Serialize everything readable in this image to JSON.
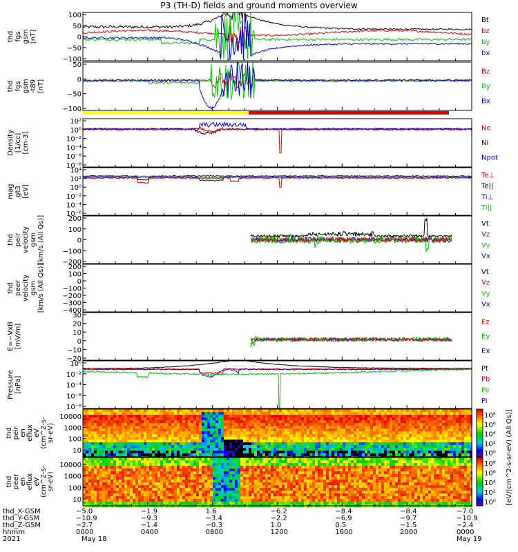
{
  "title": "P3 (TH-D) fields and ground moments overview",
  "colors": {
    "black": "#000000",
    "red": "#e00000",
    "green": "#00c800",
    "blue": "#0000e0",
    "yellow": "#ffff00"
  },
  "chart_data": [
    {
      "type": "line",
      "ylabel": [
        "thd",
        "fgs",
        "gsm",
        "[nT]"
      ],
      "yticks": [
        "100",
        "50",
        "0",
        "−50",
        "−100"
      ],
      "ylim": [
        -100,
        100
      ],
      "series": [
        {
          "name": "Bt",
          "color": "#000000"
        },
        {
          "name": "bz",
          "color": "#e00000"
        },
        {
          "name": "by",
          "color": "#00c800"
        },
        {
          "name": "bx",
          "color": "#0000e0"
        }
      ]
    },
    {
      "type": "line",
      "ylabel": [
        "thd",
        "fgs",
        "gsm",
        "-t89",
        "[nT]"
      ],
      "yticks": [
        "50",
        "0",
        "−50",
        "−100"
      ],
      "ylim": [
        -130,
        80
      ],
      "series": [
        {
          "name": "Bz",
          "color": "#e00000"
        },
        {
          "name": "By",
          "color": "#00c800"
        },
        {
          "name": "Bx",
          "color": "#0000e0"
        }
      ]
    },
    {
      "type": "line",
      "ylabel": [
        "Density",
        "[1/cc]",
        "[cm-3]"
      ],
      "yticks": [
        "10²",
        "10⁰",
        "10⁻²",
        "10⁻⁴",
        "10⁻⁶",
        "10⁻⁸"
      ],
      "ylim": [
        -9,
        3
      ],
      "series": [
        {
          "name": "Ne",
          "color": "#e00000"
        },
        {
          "name": "Ni",
          "color": "#000000"
        },
        {
          "name": "Npot",
          "color": "#0000e0"
        }
      ]
    },
    {
      "type": "line",
      "ylabel": [
        "mag",
        "gt3",
        "[eV]"
      ],
      "yticks": [
        "10⁴",
        "10²",
        "10⁰",
        "10⁻²",
        "10⁻⁴",
        "10⁻⁶"
      ],
      "ylim": [
        -7,
        5
      ],
      "series": [
        {
          "name": "Te⊥",
          "color": "#e00000"
        },
        {
          "name": "Te||",
          "color": "#000000"
        },
        {
          "name": "Ti⊥",
          "color": "#0000e0"
        },
        {
          "name": "Ti||",
          "color": "#00c800"
        }
      ]
    },
    {
      "type": "line",
      "ylabel": [
        "thd",
        "peir",
        "velocity",
        "gsm",
        "[km/s (All Qs)]"
      ],
      "yticks": [
        "200",
        "100",
        "0",
        "−100",
        "−200"
      ],
      "ylim": [
        -230,
        230
      ],
      "series": [
        {
          "name": "Vt",
          "color": "#000000"
        },
        {
          "name": "Vz",
          "color": "#e00000"
        },
        {
          "name": "Vy",
          "color": "#00c800"
        },
        {
          "name": "Vx",
          "color": "#0000e0"
        }
      ]
    },
    {
      "type": "line",
      "ylabel": [
        "thd",
        "peer",
        "velocity",
        "gsm",
        "[km/s (All Qs)]"
      ],
      "yticks": [
        "200",
        "100",
        "0",
        "−100",
        "−200",
        "−300",
        "−400"
      ],
      "ylim": [
        -400,
        290
      ],
      "series": [
        {
          "name": "Vt",
          "color": "#000000"
        },
        {
          "name": "Vz",
          "color": "#e00000"
        },
        {
          "name": "Vy",
          "color": "#00c800"
        },
        {
          "name": "Vx",
          "color": "#0000e0"
        }
      ]
    },
    {
      "type": "line",
      "ylabel": [
        "E=−VxB",
        "[mV/m]"
      ],
      "yticks": [
        "30",
        "20",
        "10",
        "0",
        "−10",
        "−20"
      ],
      "ylim": [
        -23,
        30
      ],
      "series": [
        {
          "name": "Ez",
          "color": "#e00000"
        },
        {
          "name": "Ey",
          "color": "#00c800"
        },
        {
          "name": "Ex",
          "color": "#0000e0"
        }
      ]
    },
    {
      "type": "line",
      "ylabel": [
        "Pressure",
        "[nPa]"
      ],
      "yticks": [
        "10⁰",
        "10⁻²",
        "10⁻⁴",
        "10⁻⁶",
        "10⁻⁸"
      ],
      "ylim": [
        -9,
        1
      ],
      "series": [
        {
          "name": "Pt",
          "color": "#000000"
        },
        {
          "name": "Pb",
          "color": "#e00000"
        },
        {
          "name": "Pe",
          "color": "#00c800"
        },
        {
          "name": "Pi",
          "color": "#0000e0"
        }
      ]
    },
    {
      "type": "heatmap",
      "ylabel": [
        "thd",
        "peir",
        "en",
        "eflux",
        "eV",
        "(cm^2-s-",
        "sr-eV)"
      ],
      "yticks": [
        "10000",
        "1000",
        "100",
        "10"
      ],
      "ylim": [
        5,
        25000
      ]
    },
    {
      "type": "heatmap",
      "ylabel": [
        "thd",
        "peer",
        "en",
        "eflux",
        "eV",
        "(cm^2-s-",
        "sr-eV)"
      ],
      "yticks": [
        "10000",
        "1000",
        "100",
        "10"
      ],
      "ylim": [
        5,
        25000
      ]
    }
  ],
  "colorbar": {
    "label": "[eV/(cm^2-s-sr-eV) (All Qs)]",
    "ticks_top": [
      "10⁸",
      "10⁶",
      "10⁴",
      "10²",
      "10⁰"
    ],
    "ticks_bottom": [
      "10⁸",
      "10⁶",
      "10⁴",
      "10²",
      "10⁰"
    ]
  },
  "xaxis": {
    "rows": [
      {
        "label": "thd_X-GSM",
        "values": [
          "−5.0",
          "−1.9",
          "1.6",
          "−6.2",
          "−8.4",
          "−8.4",
          "−7.0"
        ]
      },
      {
        "label": "thd_Y-GSM",
        "values": [
          "−10.9",
          "−9.3",
          "−3.4",
          "−2.2",
          "−6.9",
          "−9.7",
          "−10.9"
        ]
      },
      {
        "label": "thd_Z-GSM",
        "values": [
          "−2.7",
          "−1.4",
          "−0.3",
          "1.0",
          "0.5",
          "−1.5",
          "−2.4"
        ]
      },
      {
        "label": "hhmm",
        "values": [
          "0000",
          "0400",
          "0800",
          "1200",
          "1600",
          "2000",
          "0000"
        ]
      }
    ],
    "year": "2021",
    "date_start": "May 18",
    "date_end": "May 19"
  }
}
